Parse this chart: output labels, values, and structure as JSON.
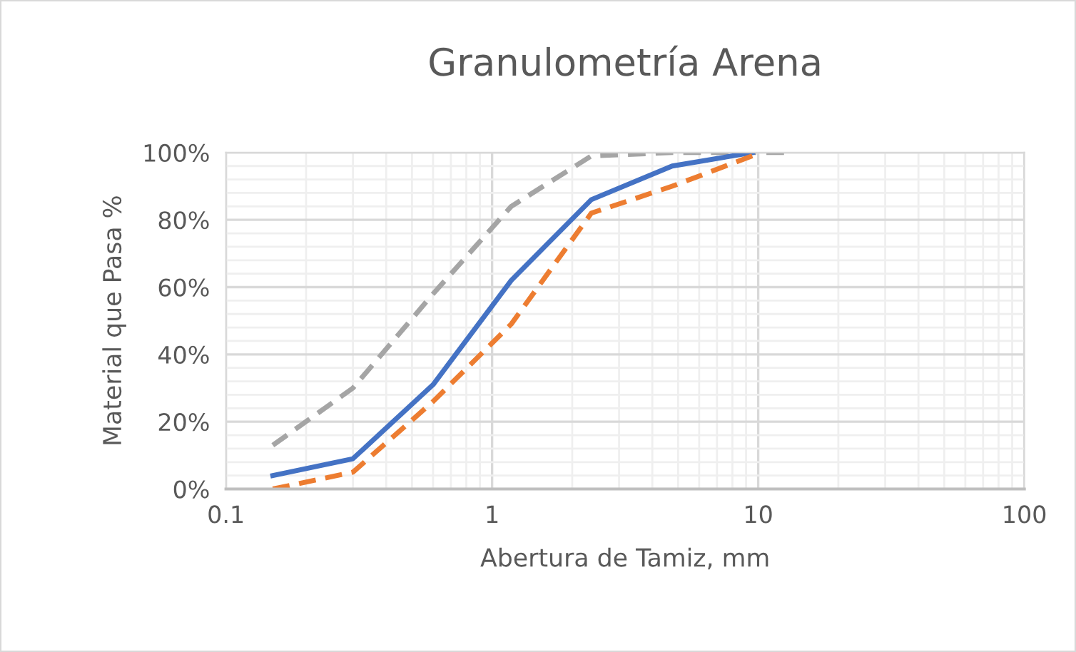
{
  "chart_data": {
    "type": "line",
    "title": "Granulometría Arena",
    "xlabel": "Abertura de Tamiz, mm",
    "ylabel": "Material que Pasa %",
    "log": "x",
    "xlim": [
      0.1,
      100
    ],
    "xticks": [
      0.1,
      1,
      10,
      100
    ],
    "ylim": [
      0,
      100
    ],
    "yticks": [
      {
        "value": 0,
        "label": "0%"
      },
      {
        "value": 20,
        "label": "20%"
      },
      {
        "value": 40,
        "label": "40%"
      },
      {
        "value": 60,
        "label": "60%"
      },
      {
        "value": 80,
        "label": "80%"
      },
      {
        "value": 100,
        "label": "100%"
      }
    ],
    "grid": true,
    "legend": false,
    "series": [
      {
        "color": "#a5a5a5",
        "line_style": "dashed",
        "x": [
          0.15,
          0.3,
          0.6,
          1.18,
          2.36,
          4.75,
          9.5,
          12.5
        ],
        "values": [
          13,
          30,
          58,
          84,
          99,
          100,
          100,
          100
        ]
      },
      {
        "color": "#4472c4",
        "line_style": "solid",
        "x": [
          0.15,
          0.3,
          0.6,
          1.18,
          2.36,
          4.75,
          9.5
        ],
        "values": [
          4,
          9,
          31,
          62,
          86,
          96,
          100
        ]
      },
      {
        "color": "#ed7d31",
        "line_style": "dashed",
        "x": [
          0.15,
          0.3,
          0.6,
          1.18,
          2.36,
          4.75,
          9.5
        ],
        "values": [
          0,
          5,
          26,
          49,
          82,
          90,
          99
        ]
      }
    ]
  }
}
